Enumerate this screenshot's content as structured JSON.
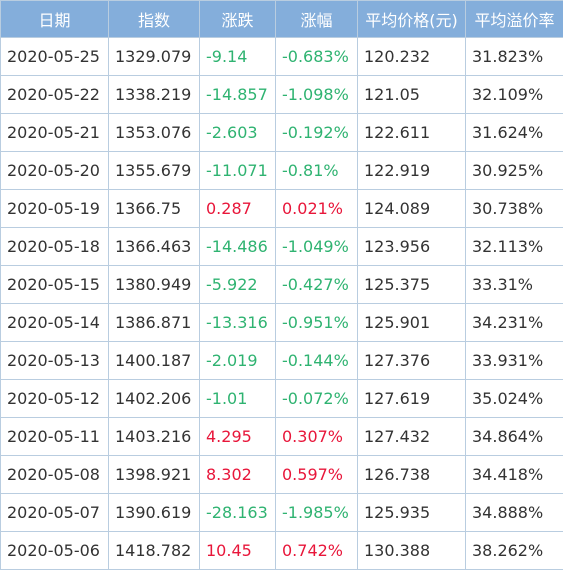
{
  "table": {
    "headers": [
      "日期",
      "指数",
      "涨跌",
      "涨幅",
      "平均价格(元)",
      "平均溢价率"
    ],
    "rows": [
      {
        "date": "2020-05-25",
        "index": "1329.079",
        "change": "-9.14",
        "pct": "-0.683%",
        "avg_price": "120.232",
        "avg_premium": "31.823%",
        "direction": "down"
      },
      {
        "date": "2020-05-22",
        "index": "1338.219",
        "change": "-14.857",
        "pct": "-1.098%",
        "avg_price": "121.05",
        "avg_premium": "32.109%",
        "direction": "down"
      },
      {
        "date": "2020-05-21",
        "index": "1353.076",
        "change": "-2.603",
        "pct": "-0.192%",
        "avg_price": "122.611",
        "avg_premium": "31.624%",
        "direction": "down"
      },
      {
        "date": "2020-05-20",
        "index": "1355.679",
        "change": "-11.071",
        "pct": "-0.81%",
        "avg_price": "122.919",
        "avg_premium": "30.925%",
        "direction": "down"
      },
      {
        "date": "2020-05-19",
        "index": "1366.75",
        "change": "0.287",
        "pct": "0.021%",
        "avg_price": "124.089",
        "avg_premium": "30.738%",
        "direction": "up"
      },
      {
        "date": "2020-05-18",
        "index": "1366.463",
        "change": "-14.486",
        "pct": "-1.049%",
        "avg_price": "123.956",
        "avg_premium": "32.113%",
        "direction": "down"
      },
      {
        "date": "2020-05-15",
        "index": "1380.949",
        "change": "-5.922",
        "pct": "-0.427%",
        "avg_price": "125.375",
        "avg_premium": "33.31%",
        "direction": "down"
      },
      {
        "date": "2020-05-14",
        "index": "1386.871",
        "change": "-13.316",
        "pct": "-0.951%",
        "avg_price": "125.901",
        "avg_premium": "34.231%",
        "direction": "down"
      },
      {
        "date": "2020-05-13",
        "index": "1400.187",
        "change": "-2.019",
        "pct": "-0.144%",
        "avg_price": "127.376",
        "avg_premium": "33.931%",
        "direction": "down"
      },
      {
        "date": "2020-05-12",
        "index": "1402.206",
        "change": "-1.01",
        "pct": "-0.072%",
        "avg_price": "127.619",
        "avg_premium": "35.024%",
        "direction": "down"
      },
      {
        "date": "2020-05-11",
        "index": "1403.216",
        "change": "4.295",
        "pct": "0.307%",
        "avg_price": "127.432",
        "avg_premium": "34.864%",
        "direction": "up"
      },
      {
        "date": "2020-05-08",
        "index": "1398.921",
        "change": "8.302",
        "pct": "0.597%",
        "avg_price": "126.738",
        "avg_premium": "34.418%",
        "direction": "up"
      },
      {
        "date": "2020-05-07",
        "index": "1390.619",
        "change": "-28.163",
        "pct": "-1.985%",
        "avg_price": "125.935",
        "avg_premium": "34.888%",
        "direction": "down"
      },
      {
        "date": "2020-05-06",
        "index": "1418.782",
        "change": "10.45",
        "pct": "0.742%",
        "avg_price": "130.388",
        "avg_premium": "38.262%",
        "direction": "up"
      }
    ]
  },
  "colors": {
    "header_bg": "#84aedb",
    "header_text": "#ffffff",
    "border": "#b9cde0",
    "text": "#333333",
    "up": "#e8163a",
    "down": "#2fb371"
  }
}
